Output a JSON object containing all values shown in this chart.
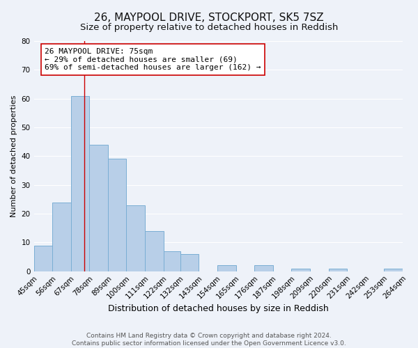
{
  "title": "26, MAYPOOL DRIVE, STOCKPORT, SK5 7SZ",
  "subtitle": "Size of property relative to detached houses in Reddish",
  "xlabel": "Distribution of detached houses by size in Reddish",
  "ylabel": "Number of detached properties",
  "bar_left_edges": [
    45,
    56,
    67,
    78,
    89,
    100,
    111,
    122,
    132,
    143,
    154,
    165,
    176,
    187,
    198,
    209,
    220,
    231,
    242,
    253
  ],
  "bar_widths": [
    11,
    11,
    11,
    11,
    11,
    11,
    11,
    10,
    11,
    11,
    11,
    11,
    11,
    11,
    11,
    11,
    11,
    11,
    11,
    11
  ],
  "bar_heights": [
    9,
    24,
    61,
    44,
    39,
    23,
    14,
    7,
    6,
    0,
    2,
    0,
    2,
    0,
    1,
    0,
    1,
    0,
    0,
    1
  ],
  "tick_labels": [
    "45sqm",
    "56sqm",
    "67sqm",
    "78sqm",
    "89sqm",
    "100sqm",
    "111sqm",
    "122sqm",
    "132sqm",
    "143sqm",
    "154sqm",
    "165sqm",
    "176sqm",
    "187sqm",
    "198sqm",
    "209sqm",
    "220sqm",
    "231sqm",
    "242sqm",
    "253sqm",
    "264sqm"
  ],
  "bar_color": "#b8cfe8",
  "bar_edge_color": "#7aaed4",
  "vline_x": 75,
  "vline_color": "#cc0000",
  "annotation_line1": "26 MAYPOOL DRIVE: 75sqm",
  "annotation_line2": "← 29% of detached houses are smaller (69)",
  "annotation_line3": "69% of semi-detached houses are larger (162) →",
  "annotation_box_color": "#ffffff",
  "annotation_edge_color": "#cc0000",
  "ylim": [
    0,
    80
  ],
  "yticks": [
    0,
    10,
    20,
    30,
    40,
    50,
    60,
    70,
    80
  ],
  "footer_line1": "Contains HM Land Registry data © Crown copyright and database right 2024.",
  "footer_line2": "Contains public sector information licensed under the Open Government Licence v3.0.",
  "background_color": "#eef2f9",
  "grid_color": "#ffffff",
  "title_fontsize": 11,
  "subtitle_fontsize": 9.5,
  "xlabel_fontsize": 9,
  "ylabel_fontsize": 8,
  "tick_fontsize": 7.5,
  "annotation_fontsize": 8,
  "footer_fontsize": 6.5
}
